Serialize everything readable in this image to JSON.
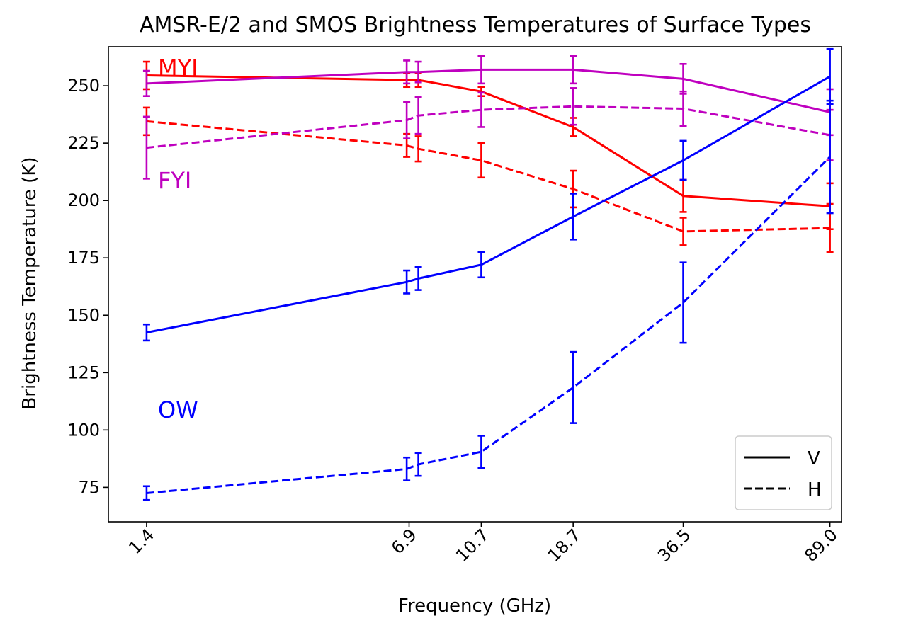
{
  "chart_data": {
    "type": "line",
    "title": "AMSR-E/2 and SMOS Brightness Temperatures of Surface Types",
    "xlabel": "Frequency (GHz)",
    "ylabel": "Brightness Temperature (K)",
    "x_tick_labels": [
      "1.4",
      "6.9",
      "10.7",
      "18.7",
      "36.5",
      "89.0"
    ],
    "x_tick_positions": [
      1.4,
      6.9,
      10.7,
      18.7,
      36.5,
      89.0
    ],
    "x_scale": "log",
    "xlim": [
      1.11,
      95.5
    ],
    "ylim": [
      60,
      267
    ],
    "y_ticks": [
      75,
      100,
      125,
      150,
      175,
      200,
      225,
      250
    ],
    "grid": false,
    "legend": {
      "placement": "lower right",
      "entries": [
        {
          "label": "V",
          "linestyle": "solid"
        },
        {
          "label": "H",
          "linestyle": "dashed"
        }
      ]
    },
    "annotations": [
      {
        "text": "MYI",
        "color": "#ff0000",
        "x": 1.5,
        "y": 258
      },
      {
        "text": "FYI",
        "color": "#bf00bf",
        "x": 1.5,
        "y": 209
      },
      {
        "text": "OW",
        "color": "#0000ff",
        "x": 1.5,
        "y": 109
      }
    ],
    "series": [
      {
        "surface": "MYI",
        "polarization": "V",
        "color": "#ff0000",
        "linestyle": "solid",
        "x": [
          1.4,
          6.8,
          7.3,
          10.7,
          18.7,
          36.5,
          89.0
        ],
        "y": [
          254.5,
          252.5,
          252.5,
          247.5,
          232,
          202,
          197.5
        ],
        "err": [
          6,
          3,
          3,
          2,
          4,
          7,
          10
        ]
      },
      {
        "surface": "MYI",
        "polarization": "H",
        "color": "#ff0000",
        "linestyle": "dashed",
        "x": [
          1.4,
          6.8,
          7.3,
          10.7,
          18.7,
          36.5,
          89.0
        ],
        "y": [
          234.5,
          224,
          222.5,
          217.5,
          205,
          186.5,
          188
        ],
        "err": [
          6,
          5,
          5.5,
          7.5,
          8,
          6,
          10.5
        ]
      },
      {
        "surface": "FYI",
        "polarization": "V",
        "color": "#bf00bf",
        "linestyle": "solid",
        "x": [
          1.4,
          6.8,
          7.3,
          10.7,
          18.7,
          36.5,
          89.0
        ],
        "y": [
          251,
          256,
          256,
          257,
          257,
          253,
          238.5
        ],
        "err": [
          5.5,
          5,
          4.5,
          6,
          6,
          6.5,
          10
        ]
      },
      {
        "surface": "FYI",
        "polarization": "H",
        "color": "#bf00bf",
        "linestyle": "dashed",
        "x": [
          1.4,
          6.8,
          7.3,
          10.7,
          18.7,
          36.5,
          89.0
        ],
        "y": [
          223,
          235,
          237,
          239.5,
          241,
          240,
          228.5
        ],
        "err": [
          13.5,
          8,
          8,
          7.5,
          8,
          7.5,
          11
        ]
      },
      {
        "surface": "OW",
        "polarization": "V",
        "color": "#0000ff",
        "linestyle": "solid",
        "x": [
          1.4,
          6.8,
          7.3,
          10.7,
          18.7,
          36.5,
          89.0
        ],
        "y": [
          142.5,
          164.5,
          166,
          172,
          193,
          217.5,
          254
        ],
        "err": [
          3.5,
          5,
          5,
          5.5,
          10,
          8.5,
          12
        ]
      },
      {
        "surface": "OW",
        "polarization": "H",
        "color": "#0000ff",
        "linestyle": "dashed",
        "x": [
          1.4,
          6.8,
          7.3,
          10.7,
          18.7,
          36.5,
          89.0
        ],
        "y": [
          72.5,
          83,
          85,
          90.5,
          118.5,
          155.5,
          219
        ],
        "err": [
          3,
          5,
          5,
          7,
          15.5,
          17.5,
          24.5
        ]
      }
    ]
  }
}
